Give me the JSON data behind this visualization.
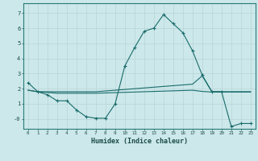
{
  "xlabel": "Humidex (Indice chaleur)",
  "bg_color": "#cce8ea",
  "grid_color": "#b8d4d6",
  "line_color": "#1a6b6b",
  "x_ticks": [
    0,
    1,
    2,
    3,
    4,
    5,
    6,
    7,
    8,
    9,
    10,
    11,
    12,
    13,
    14,
    15,
    16,
    17,
    18,
    19,
    20,
    21,
    22,
    23
  ],
  "y_ticks": [
    0,
    1,
    2,
    3,
    4,
    5,
    6,
    7
  ],
  "y_tick_labels": [
    "-0",
    "1",
    "2",
    "3",
    "4",
    "5",
    "6",
    "7"
  ],
  "ylim": [
    -0.65,
    7.65
  ],
  "xlim": [
    -0.5,
    23.5
  ],
  "line1_y": [
    2.4,
    1.8,
    1.6,
    1.2,
    1.2,
    0.6,
    0.15,
    0.05,
    0.05,
    1.0,
    3.5,
    4.7,
    5.8,
    6.0,
    6.9,
    6.3,
    5.7,
    4.5,
    2.9,
    1.8,
    1.8,
    -0.5,
    -0.3,
    -0.3
  ],
  "line2_y": [
    1.9,
    1.8,
    1.8,
    1.8,
    1.8,
    1.8,
    1.8,
    1.8,
    1.85,
    1.9,
    1.95,
    2.0,
    2.05,
    2.1,
    2.15,
    2.2,
    2.25,
    2.3,
    2.85,
    1.8,
    1.8,
    1.8,
    1.8,
    1.8
  ],
  "line3_y": [
    1.9,
    1.8,
    1.75,
    1.7,
    1.7,
    1.7,
    1.7,
    1.7,
    1.72,
    1.74,
    1.76,
    1.78,
    1.8,
    1.82,
    1.84,
    1.86,
    1.88,
    1.9,
    1.82,
    1.78,
    1.78,
    1.78,
    1.78,
    1.78
  ]
}
